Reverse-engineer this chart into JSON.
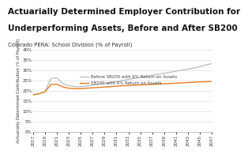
{
  "title_line1": "Actuarially Determined Employer Contribution for",
  "title_line2": "Underperforming Assets, Before and After SB200",
  "subtitle": "Colorado PERA: School Division (% of Payroll)",
  "ylabel": "Actuarially Determined Contribution (% of Payroll)",
  "xlim": [
    2017,
    2047
  ],
  "ylim": [
    0,
    40
  ],
  "yticks": [
    0,
    5,
    10,
    15,
    20,
    25,
    30,
    35,
    40
  ],
  "xticks": [
    2017,
    2019,
    2021,
    2023,
    2025,
    2027,
    2029,
    2031,
    2033,
    2035,
    2037,
    2039,
    2041,
    2043,
    2045,
    2047
  ],
  "before_sb200": {
    "label": "Before SB200 with 6% Return on Assets",
    "color": "#bbbbbb",
    "x": [
      2017,
      2018,
      2019,
      2020,
      2021,
      2022,
      2023,
      2024,
      2025,
      2026,
      2027,
      2028,
      2029,
      2030,
      2031,
      2032,
      2033,
      2034,
      2035,
      2036,
      2037,
      2038,
      2039,
      2040,
      2041,
      2042,
      2043,
      2044,
      2045,
      2046,
      2047
    ],
    "y": [
      18.0,
      18.5,
      19.5,
      26.0,
      26.2,
      23.5,
      22.5,
      22.0,
      22.0,
      22.3,
      22.7,
      23.1,
      23.5,
      24.0,
      24.5,
      25.0,
      25.5,
      26.0,
      26.5,
      27.0,
      27.5,
      28.0,
      28.5,
      29.0,
      29.5,
      30.0,
      30.5,
      31.0,
      31.8,
      32.5,
      33.2
    ]
  },
  "after_sb200": {
    "label": "SB200 with 6% Return on Assets",
    "color": "#e87d1e",
    "x": [
      2017,
      2018,
      2019,
      2020,
      2021,
      2022,
      2023,
      2024,
      2025,
      2026,
      2027,
      2028,
      2029,
      2030,
      2031,
      2032,
      2033,
      2034,
      2035,
      2036,
      2037,
      2038,
      2039,
      2040,
      2041,
      2042,
      2043,
      2044,
      2045,
      2046,
      2047
    ],
    "y": [
      18.0,
      18.5,
      19.5,
      23.0,
      23.2,
      21.8,
      21.2,
      21.0,
      21.0,
      21.2,
      21.4,
      21.6,
      21.8,
      22.0,
      22.2,
      22.4,
      22.5,
      22.7,
      22.8,
      23.0,
      23.1,
      23.3,
      23.4,
      23.5,
      23.7,
      23.8,
      24.0,
      24.1,
      24.3,
      24.4,
      24.5
    ]
  },
  "background_color": "#ffffff",
  "grid_color": "#dddddd",
  "title_fontsize": 7.5,
  "subtitle_fontsize": 5.0,
  "ylabel_fontsize": 3.8,
  "tick_fontsize": 4.0,
  "legend_fontsize": 4.0
}
